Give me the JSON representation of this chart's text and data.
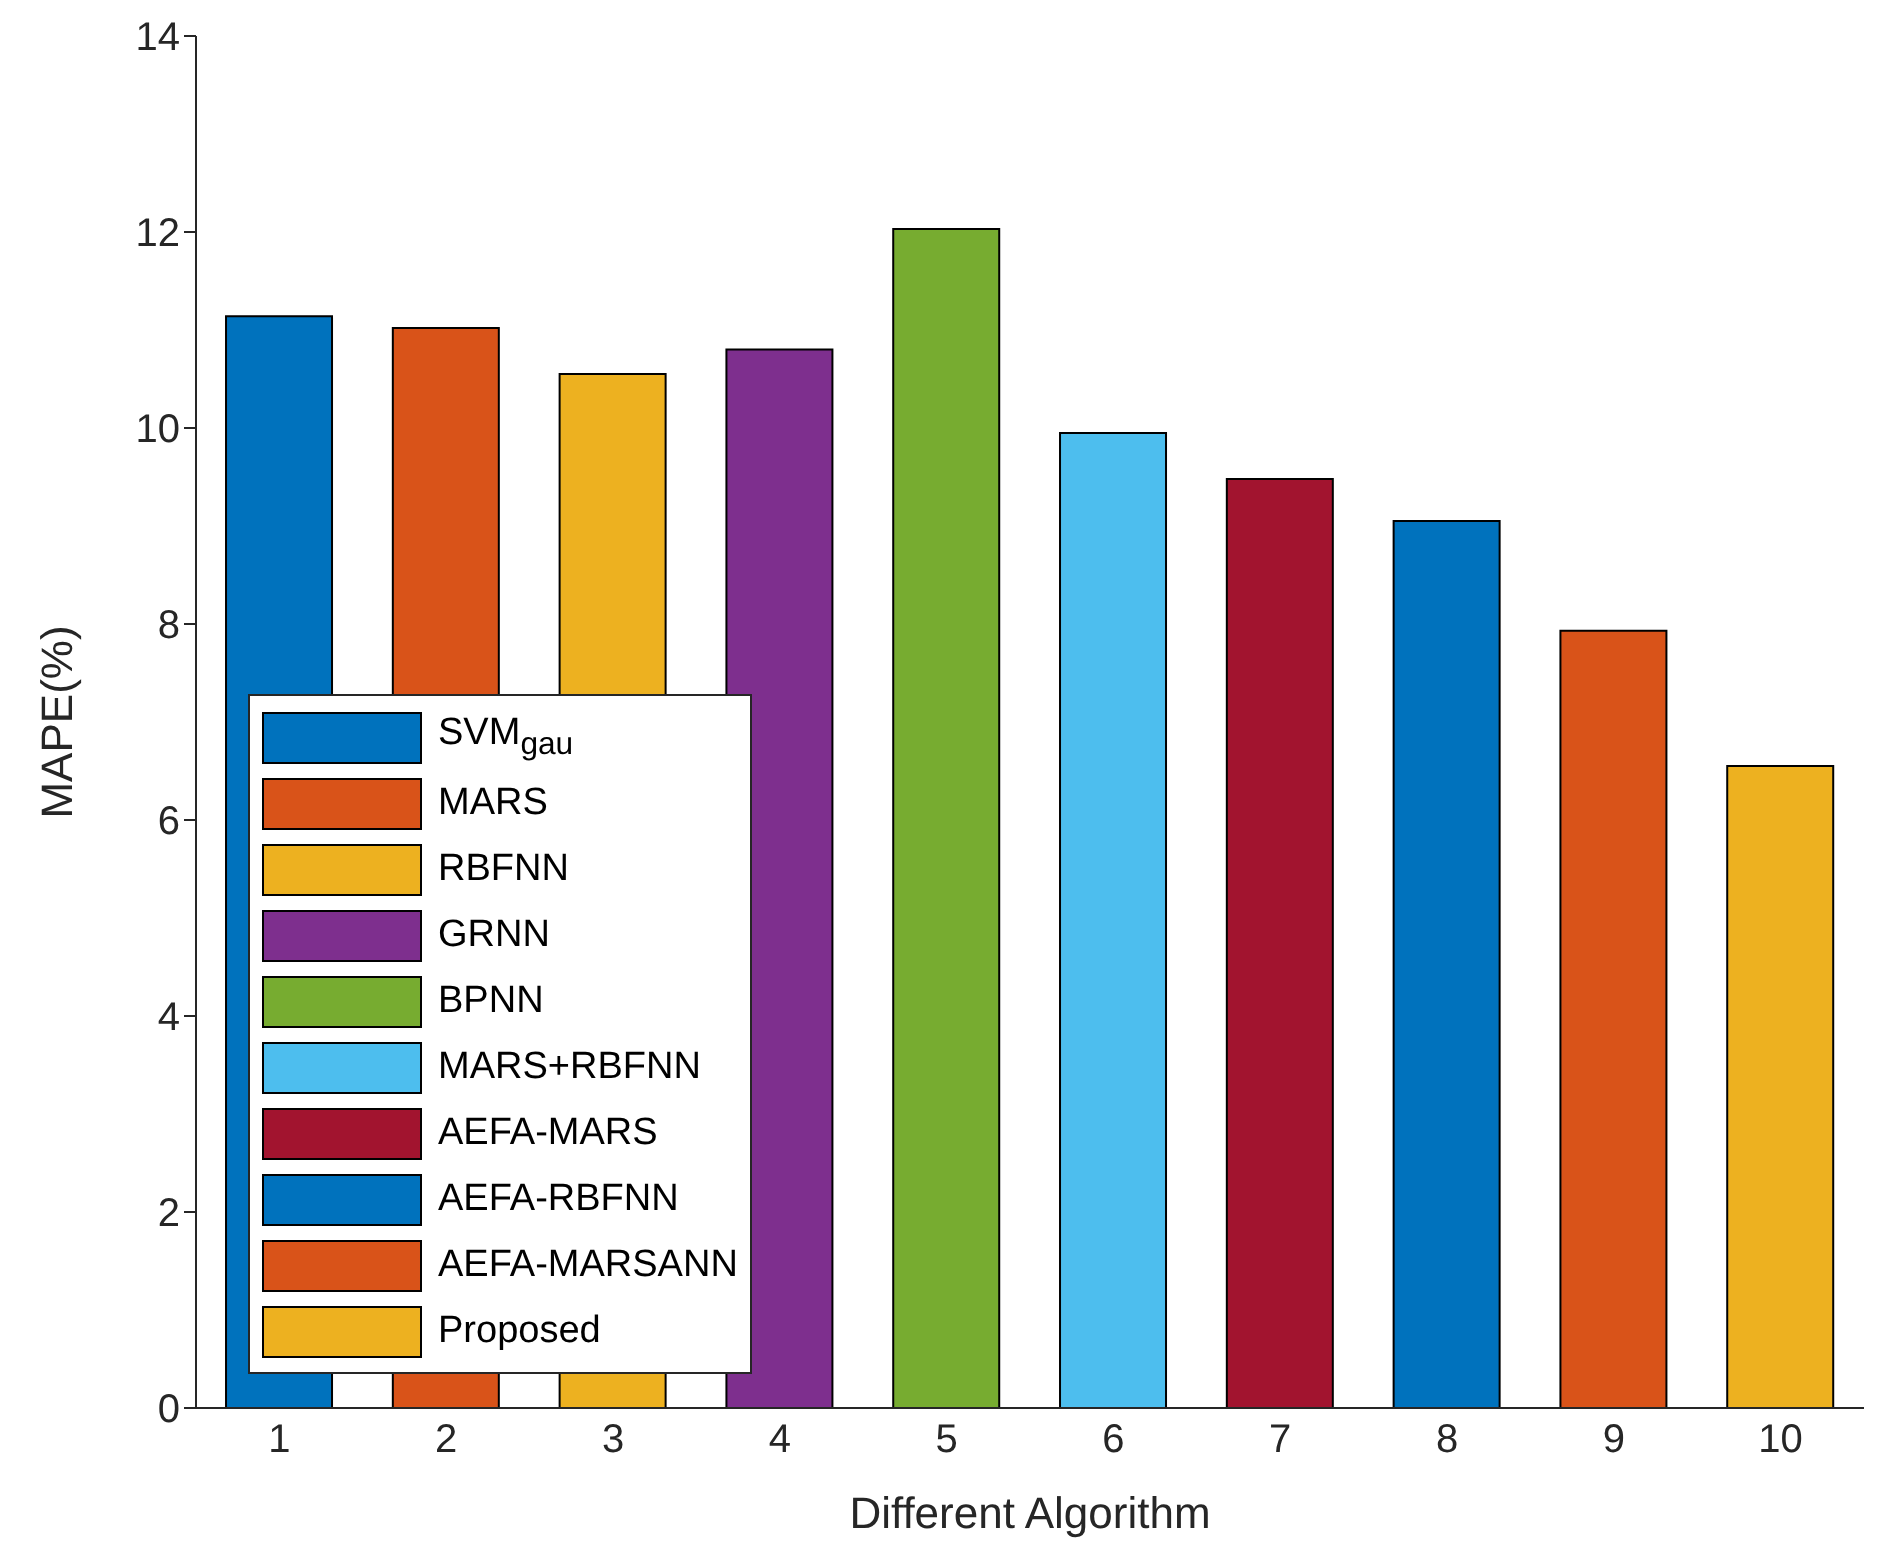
{
  "chart_data": {
    "type": "bar",
    "xlabel": "Different Algorithm",
    "ylabel": "MAPE(%)",
    "categories": [
      "1",
      "2",
      "3",
      "4",
      "5",
      "6",
      "7",
      "8",
      "9",
      "10"
    ],
    "stacked": true,
    "series": [
      {
        "name": "SVM$_{gau}$",
        "color": "#0072bd",
        "values": [
          11.14,
          null,
          null,
          null,
          null,
          null,
          null,
          null,
          null,
          null
        ]
      },
      {
        "name": "MARS",
        "color": "#d95319",
        "values": [
          null,
          11.02,
          null,
          null,
          null,
          null,
          null,
          null,
          null,
          null
        ]
      },
      {
        "name": "RBFNN",
        "color": "#edb120",
        "values": [
          null,
          null,
          10.55,
          null,
          null,
          null,
          null,
          null,
          null,
          null
        ]
      },
      {
        "name": "GRNN",
        "color": "#7e2f8e",
        "values": [
          null,
          null,
          null,
          10.8,
          null,
          null,
          null,
          null,
          null,
          null
        ]
      },
      {
        "name": "BPNN",
        "color": "#77ac30",
        "values": [
          null,
          null,
          null,
          null,
          12.03,
          null,
          null,
          null,
          null,
          null
        ]
      },
      {
        "name": "MARS+RBFNN",
        "color": "#4dbeee",
        "values": [
          null,
          null,
          null,
          null,
          null,
          9.95,
          null,
          null,
          null,
          null
        ]
      },
      {
        "name": "AEFA-MARS",
        "color": "#a2142f",
        "values": [
          null,
          null,
          null,
          null,
          null,
          null,
          9.48,
          null,
          null,
          null
        ]
      },
      {
        "name": "AEFA-RBFNN",
        "color": "#0072bd",
        "values": [
          null,
          null,
          null,
          null,
          null,
          null,
          null,
          9.05,
          null,
          null
        ]
      },
      {
        "name": "AEFA-MARSANN",
        "color": "#d95319",
        "values": [
          null,
          null,
          null,
          null,
          null,
          null,
          null,
          null,
          7.93,
          null
        ]
      },
      {
        "name": "Proposed",
        "color": "#edb120",
        "values": [
          null,
          null,
          null,
          null,
          null,
          null,
          null,
          null,
          null,
          6.55
        ]
      }
    ],
    "ylim": [
      0,
      14
    ],
    "yticks": [
      0,
      2,
      4,
      6,
      8,
      10,
      12,
      14
    ],
    "grid": false,
    "legend": "bottom left"
  }
}
